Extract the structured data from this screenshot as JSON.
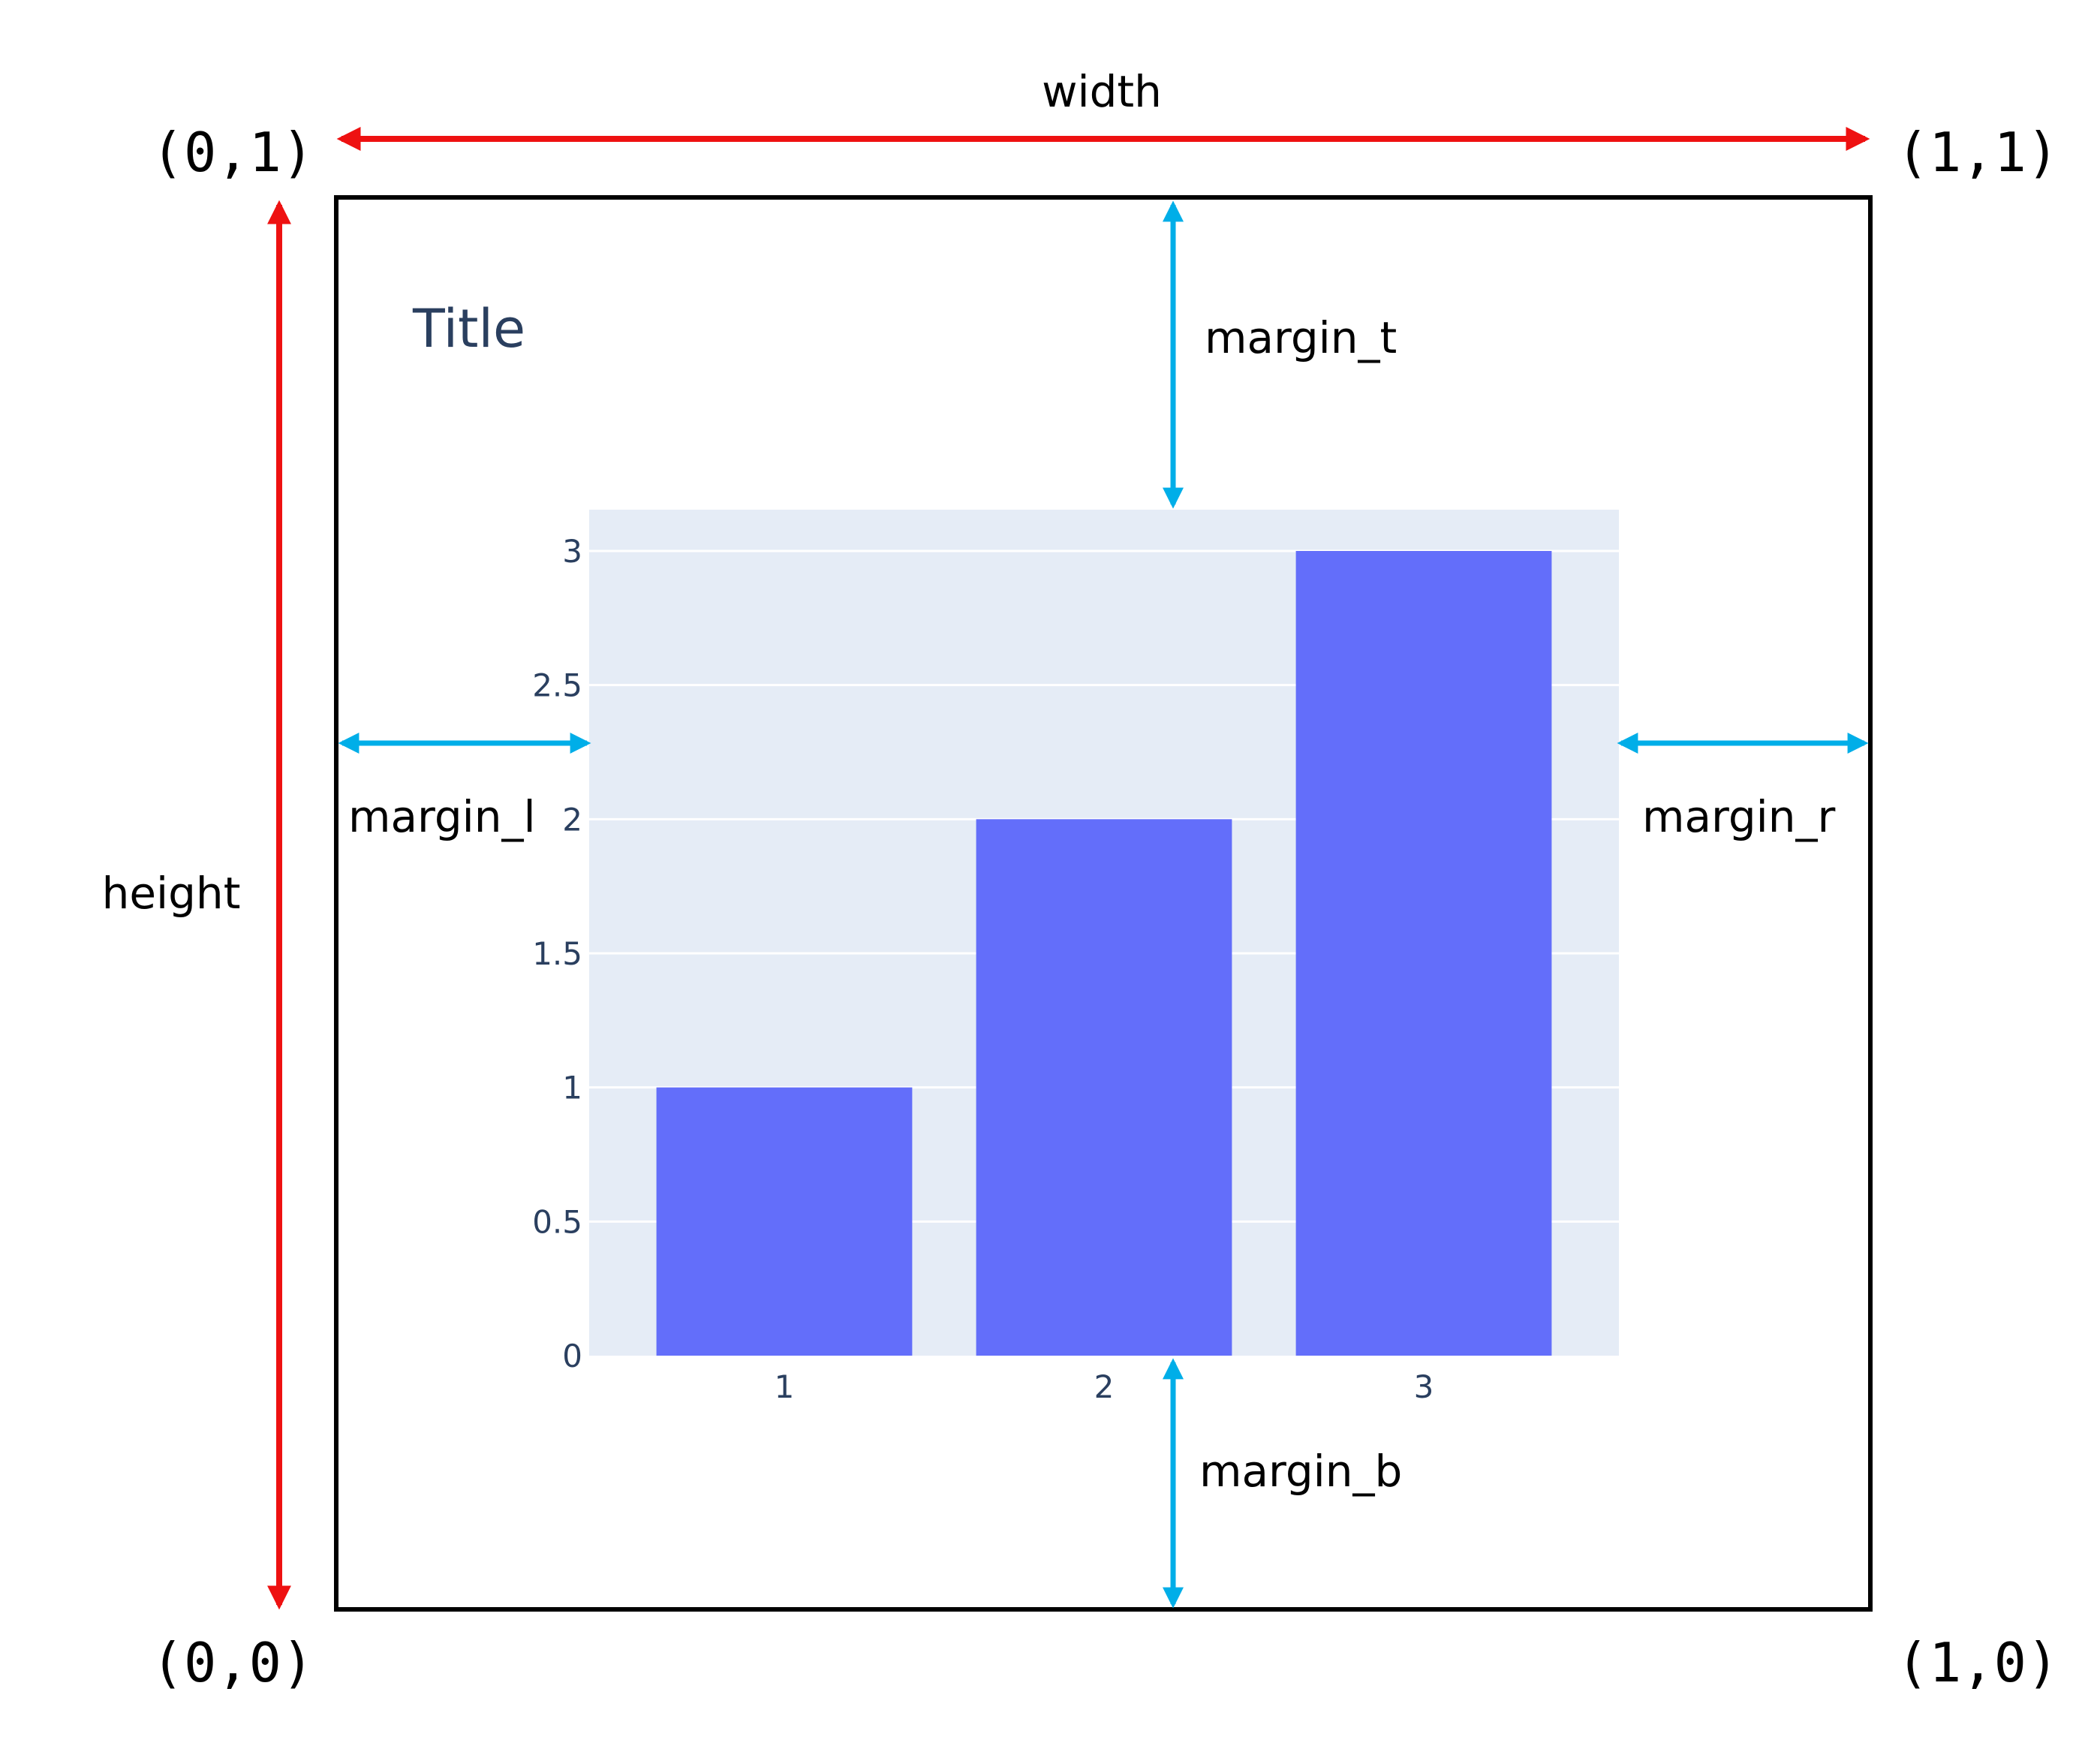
{
  "corners": {
    "top_left": "(0,1)",
    "top_right": "(1,1)",
    "bottom_left": "(0,0)",
    "bottom_right": "(1,0)"
  },
  "dimensions": {
    "width_label": "width",
    "height_label": "height"
  },
  "margins": {
    "top": "margin_t",
    "bottom": "margin_b",
    "left": "margin_l",
    "right": "margin_r"
  },
  "colors": {
    "dimension_arrow": "#ee1111",
    "margin_arrow": "#00aee8",
    "frame": "#000000",
    "plot_background": "#e5ecf6",
    "gridline": "#ffffff",
    "bar": "#636efa",
    "title": "#2a3f5f",
    "tick_label": "#2a3f5f"
  },
  "chart_data": {
    "type": "bar",
    "title": "Title",
    "categories": [
      "1",
      "2",
      "3"
    ],
    "values": [
      1,
      2,
      3
    ],
    "xlabel": "",
    "ylabel": "",
    "ylim": [
      0,
      3
    ],
    "yticks": [
      "0",
      "0.5",
      "1",
      "1.5",
      "2",
      "2.5",
      "3"
    ],
    "grid": true
  }
}
